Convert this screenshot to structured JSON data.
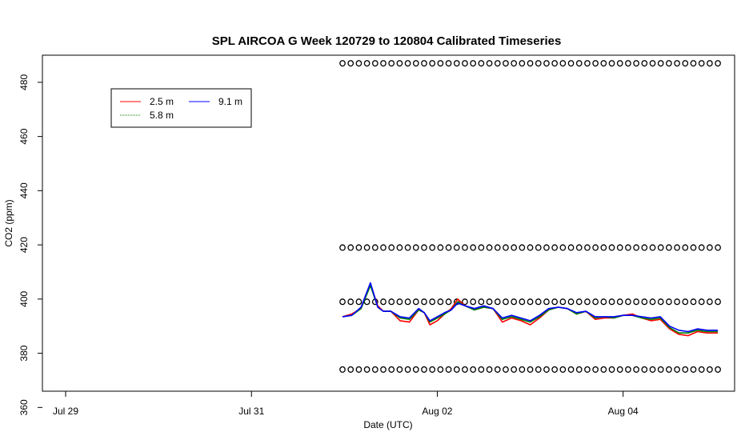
{
  "chart_data": {
    "type": "line",
    "title": "SPL AIRCOA G  Week 120729 to 120804  Calibrated Timeseries",
    "xlabel": "Date (UTC)",
    "ylabel": "CO2 (ppm)",
    "x_ticks": [
      "Jul 29",
      "Jul 31",
      "Aug 02",
      "Aug 04"
    ],
    "x_tick_values": [
      0,
      2,
      4,
      6
    ],
    "xlim": [
      -0.25,
      7.2
    ],
    "y_ticks": [
      360,
      380,
      400,
      420,
      440,
      460,
      480
    ],
    "ylim": [
      366,
      490
    ],
    "legend_position": "top-left",
    "colors": {
      "2.5 m": "#ff0000",
      "5.8 m": "#008000",
      "9.1 m": "#0000ff"
    },
    "series": [
      {
        "name": "2.5 m",
        "color": "#ff0000",
        "x": [
          2.98,
          3.08,
          3.18,
          3.28,
          3.36,
          3.42,
          3.5,
          3.6,
          3.7,
          3.8,
          3.86,
          3.92,
          4.0,
          4.08,
          4.15,
          4.22,
          4.3,
          4.4,
          4.5,
          4.6,
          4.7,
          4.8,
          4.9,
          5.0,
          5.1,
          5.2,
          5.3,
          5.4,
          5.5,
          5.6,
          5.7,
          5.8,
          5.9,
          6.0,
          6.1,
          6.2,
          6.3,
          6.4,
          6.5,
          6.6,
          6.7,
          6.8,
          6.9,
          7.02
        ],
        "values": [
          393.5,
          394.5,
          396.5,
          405.5,
          397.5,
          395.5,
          395.5,
          392.0,
          391.5,
          396.0,
          395.0,
          390.5,
          392.0,
          394.5,
          396.5,
          400.0,
          397.5,
          396.0,
          397.0,
          396.5,
          391.5,
          393.0,
          392.0,
          390.5,
          393.0,
          396.0,
          397.0,
          396.5,
          394.5,
          395.5,
          392.5,
          393.0,
          393.0,
          394.0,
          394.5,
          393.0,
          392.0,
          392.5,
          389.0,
          387.0,
          386.5,
          388.0,
          387.5,
          387.5
        ]
      },
      {
        "name": "5.8 m",
        "color": "#008000",
        "x": [
          2.98,
          3.08,
          3.18,
          3.28,
          3.36,
          3.42,
          3.5,
          3.6,
          3.7,
          3.8,
          3.86,
          3.92,
          4.0,
          4.08,
          4.15,
          4.22,
          4.3,
          4.4,
          4.5,
          4.6,
          4.7,
          4.8,
          4.9,
          5.0,
          5.1,
          5.2,
          5.3,
          5.4,
          5.5,
          5.6,
          5.7,
          5.8,
          5.9,
          6.0,
          6.1,
          6.2,
          6.3,
          6.4,
          6.5,
          6.6,
          6.7,
          6.8,
          6.9,
          7.02
        ],
        "values": [
          393.5,
          394.0,
          396.5,
          405.0,
          397.0,
          395.5,
          395.5,
          393.0,
          392.5,
          396.0,
          395.0,
          391.5,
          393.0,
          394.5,
          396.0,
          399.0,
          397.5,
          396.0,
          397.0,
          396.5,
          392.5,
          393.5,
          392.5,
          391.5,
          393.5,
          396.0,
          397.0,
          396.5,
          394.5,
          395.5,
          393.0,
          393.5,
          393.0,
          394.0,
          394.0,
          393.0,
          392.5,
          393.0,
          389.5,
          387.5,
          387.5,
          388.5,
          388.0,
          388.0
        ]
      },
      {
        "name": "9.1 m",
        "color": "#0000ff",
        "x": [
          2.98,
          3.08,
          3.18,
          3.28,
          3.36,
          3.42,
          3.5,
          3.6,
          3.7,
          3.8,
          3.86,
          3.92,
          4.0,
          4.08,
          4.15,
          4.22,
          4.3,
          4.4,
          4.5,
          4.6,
          4.7,
          4.8,
          4.9,
          5.0,
          5.1,
          5.2,
          5.3,
          5.4,
          5.5,
          5.6,
          5.7,
          5.8,
          5.9,
          6.0,
          6.1,
          6.2,
          6.3,
          6.4,
          6.5,
          6.6,
          6.7,
          6.8,
          6.9,
          7.02
        ],
        "values": [
          393.5,
          394.0,
          397.0,
          406.0,
          397.0,
          395.5,
          395.5,
          393.5,
          393.0,
          396.5,
          395.0,
          392.0,
          393.5,
          395.0,
          396.0,
          398.5,
          397.5,
          396.5,
          397.5,
          396.5,
          393.0,
          394.0,
          393.0,
          392.0,
          394.0,
          396.5,
          397.0,
          396.5,
          395.0,
          395.5,
          393.5,
          393.5,
          393.5,
          394.0,
          394.0,
          393.5,
          393.0,
          393.5,
          390.0,
          388.5,
          388.0,
          389.0,
          388.5,
          388.5
        ]
      }
    ],
    "calibration_levels": [
      374,
      399,
      419,
      487
    ],
    "calibration_x_range": [
      2.98,
      7.02
    ],
    "calibration_marker": "circle",
    "calibration_marker_count": 47
  }
}
